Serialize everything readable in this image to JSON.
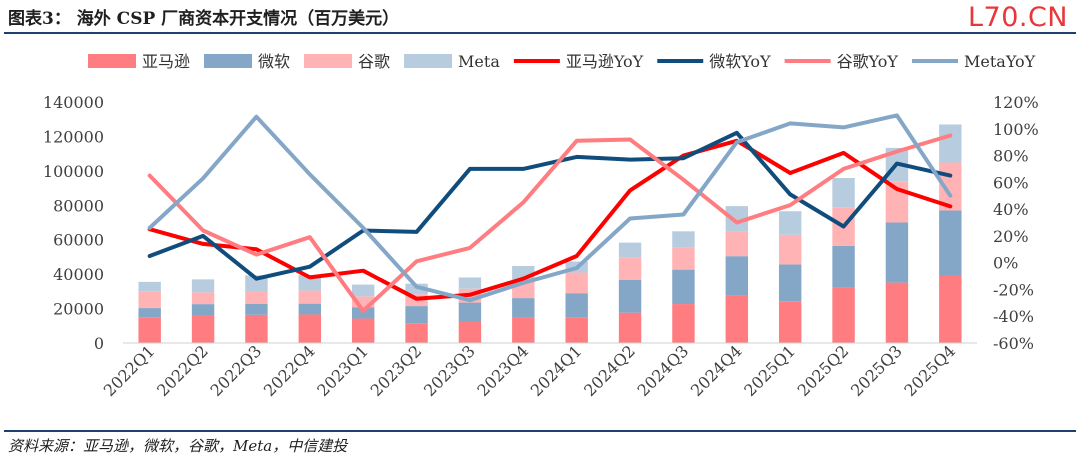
{
  "header": {
    "title": "图表3：  海外 CSP 厂商资本开支情况（百万美元）",
    "watermark": "L70.CN"
  },
  "footer": {
    "source": "资料来源：亚马逊，微软，谷歌，Meta，中信建投"
  },
  "colors": {
    "amazon_bar": "#ff7c80",
    "microsoft_bar": "#84a7c8",
    "google_bar": "#ffb3b5",
    "meta_bar": "#b7cddf",
    "amazon_line": "#ff0000",
    "microsoft_line": "#104d7c",
    "google_line": "#ff7c80",
    "meta_line": "#84a7c8",
    "rule": "#1f3f6e"
  },
  "chart_data": {
    "type": "bar",
    "stacked": true,
    "categories": [
      "2022Q1",
      "2022Q2",
      "2022Q3",
      "2022Q4",
      "2023Q1",
      "2023Q2",
      "2023Q3",
      "2023Q4",
      "2024Q1",
      "2024Q2",
      "2024Q3",
      "2024Q4",
      "2025Q1",
      "2025Q2",
      "2025Q3",
      "2025Q4"
    ],
    "series": [
      {
        "name": "亚马逊",
        "kind": "bar",
        "axis": "left",
        "color": "#ff7c80",
        "values": [
          14951,
          15724,
          16378,
          16592,
          14207,
          11455,
          12479,
          14588,
          14925,
          17620,
          22620,
          27834,
          24261,
          32183,
          35095,
          39500
        ]
      },
      {
        "name": "微软",
        "kind": "bar",
        "axis": "left",
        "color": "#84a7c8",
        "values": [
          5340,
          6871,
          6283,
          6274,
          6607,
          10000,
          11000,
          11500,
          14000,
          19000,
          20000,
          22600,
          21400,
          24200,
          34900,
          37500
        ]
      },
      {
        "name": "谷歌",
        "kind": "bar",
        "axis": "left",
        "color": "#ffb3b5",
        "values": [
          9786,
          6828,
          7276,
          7595,
          6289,
          6888,
          8055,
          11019,
          12012,
          13186,
          13061,
          14276,
          17197,
          22446,
          23953,
          27850
        ]
      },
      {
        "name": "Meta",
        "kind": "bar",
        "axis": "left",
        "color": "#b7cddf",
        "values": [
          5435,
          7528,
          9375,
          9043,
          6823,
          6134,
          6543,
          7665,
          6400,
          8500,
          9200,
          14800,
          13700,
          17000,
          19400,
          22100
        ]
      },
      {
        "name": "亚马逊YoY",
        "kind": "line",
        "axis": "right",
        "color": "#ff0000",
        "values": [
          25,
          14,
          10,
          -11,
          -6,
          -27,
          -24,
          -12,
          5,
          54,
          80,
          91,
          67,
          82,
          55,
          42
        ]
      },
      {
        "name": "微软YoY",
        "kind": "line",
        "axis": "right",
        "color": "#104d7c",
        "values": [
          5,
          20,
          -12,
          -3,
          24,
          23,
          70,
          70,
          79,
          77,
          78,
          97,
          51,
          27,
          74,
          65
        ]
      },
      {
        "name": "谷歌YoY",
        "kind": "line",
        "axis": "right",
        "color": "#ff7c80",
        "values": [
          65,
          24,
          6,
          19,
          -36,
          1,
          11,
          45,
          91,
          92,
          62,
          30,
          43,
          70,
          83,
          95
        ]
      },
      {
        "name": "MetaYoY",
        "kind": "line",
        "axis": "right",
        "color": "#84a7c8",
        "values": [
          26,
          63,
          109,
          66,
          26,
          -18,
          -28,
          -15,
          -4,
          33,
          36,
          90,
          104,
          101,
          110,
          50
        ]
      }
    ],
    "y_left": {
      "min": 0,
      "max": 140000,
      "step": 20000,
      "ticks": [
        "0",
        "20000",
        "40000",
        "60000",
        "80000",
        "100000",
        "120000",
        "140000"
      ]
    },
    "y_right": {
      "min": -60,
      "max": 120,
      "step": 20,
      "ticks": [
        "-60%",
        "-40%",
        "-20%",
        "0%",
        "20%",
        "40%",
        "60%",
        "80%",
        "100%",
        "120%"
      ]
    },
    "legend_position": "top",
    "grid": false
  }
}
